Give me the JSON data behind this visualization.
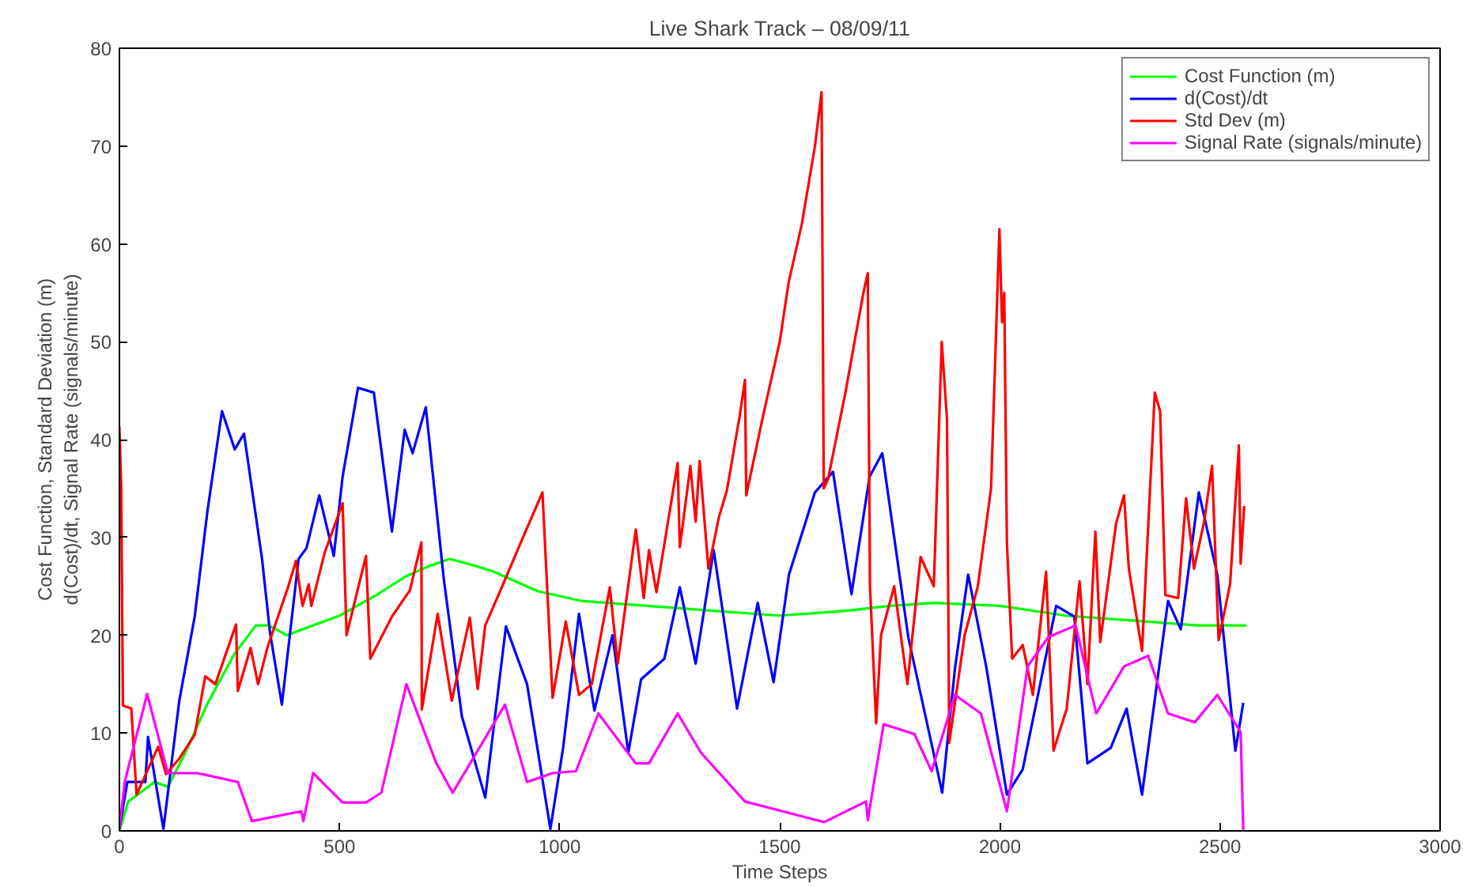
{
  "chart_data": {
    "type": "line",
    "title": "Live Shark Track – 08/09/11",
    "xlabel": "Time Steps",
    "ylabel": "Cost Function, Standard Deviation (m)\nd(Cost)/dt, Signal Rate (signals/minute)",
    "xlim": [
      0,
      3000
    ],
    "ylim": [
      0,
      80
    ],
    "xticks": [
      0,
      500,
      1000,
      1500,
      2000,
      2500,
      3000
    ],
    "yticks": [
      0,
      10,
      20,
      30,
      40,
      50,
      60,
      70,
      80
    ],
    "grid": false,
    "legend": "top right",
    "marker": "none",
    "line_style": "solid",
    "series": [
      {
        "name": "Cost Function (m)",
        "color": "#00ff00",
        "x": [
          0,
          20,
          50,
          80,
          110,
          150,
          200,
          260,
          310,
          340,
          380,
          440,
          500,
          580,
          650,
          700,
          750,
          800,
          850,
          950,
          1050,
          1200,
          1350,
          1500,
          1650,
          1750,
          1850,
          2000,
          2150,
          2300,
          2450,
          2560
        ],
        "values": [
          0,
          3,
          4,
          5,
          4.5,
          8,
          13,
          18,
          21,
          21,
          20,
          21,
          22,
          24,
          26,
          27,
          27.8,
          27.2,
          26.5,
          24.5,
          23.5,
          23,
          22.5,
          22,
          22.5,
          23,
          23.3,
          23,
          22,
          21.5,
          21,
          21
        ]
      },
      {
        "name": "d(Cost)/dt",
        "color": "#0000ff",
        "x": [
          0,
          18,
          59,
          65,
          100,
          136,
          171,
          200,
          233,
          262,
          283,
          324,
          342,
          369,
          407,
          425,
          454,
          487,
          507,
          542,
          578,
          619,
          648,
          666,
          696,
          737,
          778,
          831,
          878,
          926,
          979,
          1008,
          1044,
          1079,
          1120,
          1156,
          1185,
          1238,
          1273,
          1309,
          1350,
          1403,
          1450,
          1486,
          1521,
          1580,
          1621,
          1663,
          1704,
          1733,
          1792,
          1869,
          1898,
          1928,
          1969,
          2016,
          2052,
          2128,
          2169,
          2199,
          2252,
          2288,
          2323,
          2382,
          2411,
          2452,
          2494,
          2535,
          2553
        ],
        "values": [
          0.2,
          5,
          5,
          9.6,
          0.2,
          13.3,
          21.9,
          32.7,
          42.9,
          39,
          40.6,
          27.8,
          20.3,
          12.9,
          27.8,
          28.9,
          34.3,
          28.1,
          36.2,
          45.3,
          44.8,
          30.6,
          41,
          38.6,
          43.3,
          25.7,
          11.7,
          3.4,
          20.9,
          15,
          0.2,
          8.5,
          22.2,
          12.3,
          20,
          8,
          15.5,
          17.6,
          24.9,
          17.1,
          28.7,
          12.5,
          23.3,
          15.2,
          26.2,
          34.6,
          36.7,
          24.2,
          36.2,
          38.6,
          19.8,
          3.9,
          16.6,
          26.2,
          16.8,
          3.7,
          6.3,
          23,
          21.9,
          6.9,
          8.5,
          12.5,
          3.7,
          23.5,
          20.6,
          34.6,
          26.2,
          8.2,
          13.1
        ]
      },
      {
        "name": "Std Dev (m)",
        "color": "#ff0000",
        "x": [
          0,
          4,
          8,
          27,
          39,
          88,
          106,
          136,
          171,
          195,
          218,
          265,
          269,
          298,
          315,
          336,
          383,
          401,
          416,
          430,
          436,
          466,
          507,
          516,
          560,
          570,
          619,
          660,
          686,
          687,
          723,
          755,
          796,
          814,
          831,
          861,
          914,
          961,
          984,
          1014,
          1044,
          1073,
          1114,
          1132,
          1173,
          1191,
          1203,
          1220,
          1268,
          1273,
          1297,
          1309,
          1318,
          1338,
          1362,
          1380,
          1409,
          1421,
          1424,
          1462,
          1500,
          1520,
          1550,
          1580,
          1595,
          1600,
          1610,
          1650,
          1690,
          1700,
          1705,
          1719,
          1730,
          1760,
          1790,
          1820,
          1850,
          1868,
          1880,
          1885,
          1920,
          1950,
          1980,
          1999,
          2005,
          2010,
          2016,
          2028,
          2052,
          2075,
          2105,
          2122,
          2152,
          2181,
          2199,
          2217,
          2228,
          2264,
          2282,
          2293,
          2323,
          2352,
          2364,
          2376,
          2405,
          2423,
          2441,
          2464,
          2482,
          2497,
          2523,
          2543,
          2547,
          2555
        ],
        "values": [
          41.3,
          35,
          12.8,
          12.5,
          3.7,
          8.6,
          5.8,
          7.4,
          9.8,
          15.8,
          15,
          21.1,
          14.3,
          18.7,
          15,
          18.7,
          24.9,
          27.6,
          23,
          25.2,
          23,
          28.4,
          33.5,
          20,
          28.1,
          17.6,
          21.9,
          24.6,
          29.5,
          12.4,
          22.2,
          13.3,
          21.8,
          14.5,
          21,
          24.1,
          29.7,
          34.6,
          13.6,
          21.4,
          13.9,
          15,
          24.9,
          17.1,
          30.8,
          23.8,
          28.7,
          24.4,
          37.6,
          29,
          37.3,
          31.6,
          37.8,
          26.8,
          32.1,
          34.8,
          42.4,
          46.1,
          34.3,
          42.4,
          50,
          56,
          62,
          70,
          75.5,
          35,
          36,
          45,
          55,
          57,
          25,
          11,
          20,
          25,
          15,
          28,
          25,
          50,
          42,
          9,
          20,
          25,
          35,
          61.5,
          52,
          55,
          29.5,
          17.6,
          19,
          13.9,
          26.5,
          8.2,
          12.5,
          25.5,
          15,
          30.6,
          19.3,
          31.4,
          34.3,
          26.8,
          18.4,
          44.8,
          42.9,
          24.1,
          23.8,
          34,
          26.8,
          31.6,
          37.3,
          19.5,
          25.2,
          39.4,
          27.3,
          33.2
        ]
      },
      {
        "name": "Signal Rate (signals/minute)",
        "color": "#ff00ff",
        "x": [
          0,
          12,
          63,
          110,
          177,
          269,
          301,
          413,
          418,
          440,
          507,
          560,
          595,
          652,
          719,
          757,
          876,
          926,
          984,
          1037,
          1088,
          1173,
          1203,
          1268,
          1321,
          1421,
          1601,
          1696,
          1700,
          1736,
          1806,
          1845,
          1898,
          1957,
          2016,
          2063,
          2110,
          2172,
          2219,
          2282,
          2337,
          2382,
          2443,
          2494,
          2547,
          2553
        ],
        "values": [
          0.2,
          5,
          14,
          5.9,
          5.9,
          5,
          1,
          2,
          1,
          5.9,
          2.9,
          2.9,
          3.9,
          15,
          7,
          3.9,
          12.9,
          5,
          5.9,
          6.1,
          12,
          6.9,
          6.9,
          12,
          8,
          3,
          0.9,
          3,
          1.1,
          10.9,
          9.9,
          6.1,
          13.9,
          12,
          2,
          16.8,
          19.8,
          21,
          12,
          16.8,
          17.9,
          12,
          11.1,
          13.9,
          10.1,
          0
        ]
      }
    ]
  }
}
